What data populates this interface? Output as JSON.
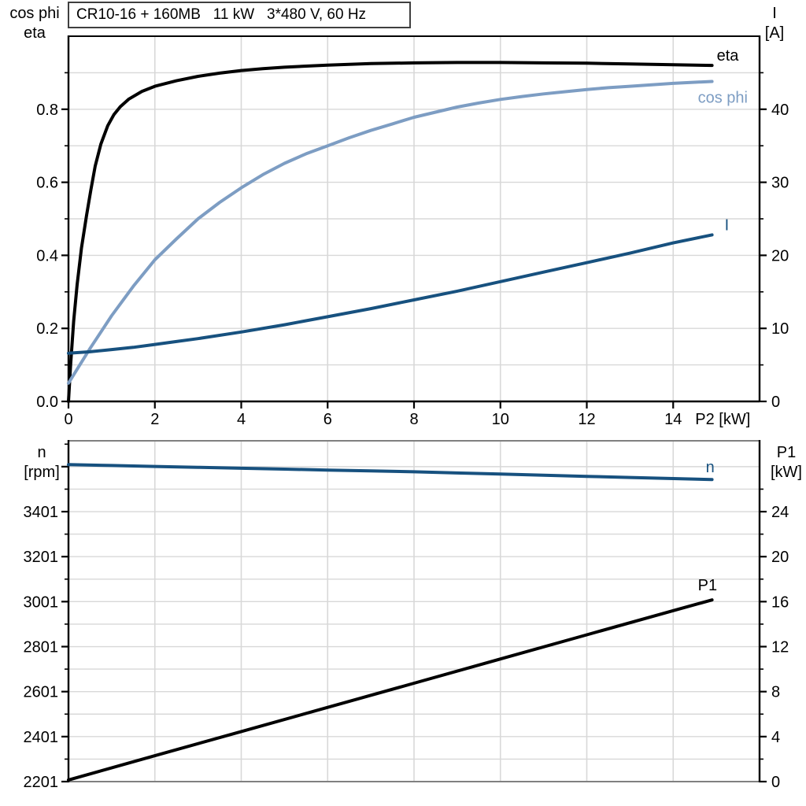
{
  "title_box": {
    "text": "CR10-16 + 160MB   11 kW   3*480 V, 60 Hz"
  },
  "colors": {
    "eta": "#000000",
    "cos_phi": "#7d9dc3",
    "current": "#17517f",
    "speed": "#17517f",
    "p1": "#000000",
    "grid": "#d8d8d8",
    "frame_gray": "#808080",
    "axis": "#000000"
  },
  "chart_data": [
    {
      "type": "line",
      "title": "CR10-16 + 160MB   11 kW   3*480 V, 60 Hz",
      "legend_position": "curve-end-labels",
      "grid": true,
      "x_axis": {
        "label": "P2 [kW]",
        "min": 0,
        "max": 16,
        "grid_step": 2,
        "major_ticks": [
          0,
          2,
          4,
          6,
          8,
          10,
          12,
          14
        ],
        "tick_labels": [
          "0",
          "2",
          "4",
          "6",
          "8",
          "10",
          "12",
          "14"
        ]
      },
      "y_left": {
        "header": [
          "cos phi",
          "eta"
        ],
        "min": 0,
        "max": 1.0,
        "grid_step": 0.1,
        "major_ticks": [
          0,
          0.2,
          0.4,
          0.6,
          0.8
        ],
        "tick_labels": [
          "0.0",
          "0.2",
          "0.4",
          "0.6",
          "0.8"
        ],
        "minor_ticks": [
          0.1,
          0.3,
          0.5,
          0.7,
          0.9
        ]
      },
      "y_right": {
        "header": [
          "I",
          "[A]"
        ],
        "min": 0,
        "max": 50,
        "major_ticks": [
          0,
          10,
          20,
          30,
          40
        ],
        "tick_labels": [
          "0",
          "10",
          "20",
          "30",
          "40"
        ],
        "minor_ticks": [
          5,
          15,
          25,
          35,
          45
        ]
      },
      "series": [
        {
          "name": "eta",
          "color": "#000000",
          "axis": "left",
          "points": [
            [
              0,
              0
            ],
            [
              0.05,
              0.1
            ],
            [
              0.12,
              0.22
            ],
            [
              0.2,
              0.32
            ],
            [
              0.3,
              0.42
            ],
            [
              0.42,
              0.51
            ],
            [
              0.52,
              0.58
            ],
            [
              0.62,
              0.645
            ],
            [
              0.75,
              0.705
            ],
            [
              0.91,
              0.755
            ],
            [
              1.05,
              0.785
            ],
            [
              1.2,
              0.807
            ],
            [
              1.4,
              0.828
            ],
            [
              1.7,
              0.849
            ],
            [
              2.0,
              0.863
            ],
            [
              2.5,
              0.878
            ],
            [
              3.0,
              0.89
            ],
            [
              3.5,
              0.899
            ],
            [
              4.0,
              0.906
            ],
            [
              4.5,
              0.911
            ],
            [
              5.0,
              0.915
            ],
            [
              5.5,
              0.918
            ],
            [
              6.0,
              0.921
            ],
            [
              7.0,
              0.925
            ],
            [
              8.0,
              0.927
            ],
            [
              9.0,
              0.928
            ],
            [
              10.0,
              0.928
            ],
            [
              11.0,
              0.927
            ],
            [
              12.0,
              0.926
            ],
            [
              13.0,
              0.924
            ],
            [
              14.0,
              0.922
            ],
            [
              14.9,
              0.92
            ]
          ]
        },
        {
          "name": "cos phi",
          "color": "#7d9dc3",
          "axis": "left",
          "points": [
            [
              0,
              0.05
            ],
            [
              0.5,
              0.145
            ],
            [
              1.0,
              0.235
            ],
            [
              1.5,
              0.315
            ],
            [
              2.0,
              0.388
            ],
            [
              2.5,
              0.445
            ],
            [
              3.0,
              0.5
            ],
            [
              3.5,
              0.545
            ],
            [
              4.0,
              0.585
            ],
            [
              4.5,
              0.621
            ],
            [
              5.0,
              0.652
            ],
            [
              5.5,
              0.678
            ],
            [
              6.0,
              0.7
            ],
            [
              6.5,
              0.722
            ],
            [
              7.0,
              0.742
            ],
            [
              7.5,
              0.76
            ],
            [
              8.0,
              0.778
            ],
            [
              8.5,
              0.792
            ],
            [
              9.0,
              0.806
            ],
            [
              9.5,
              0.817
            ],
            [
              10.0,
              0.827
            ],
            [
              10.5,
              0.835
            ],
            [
              11.0,
              0.842
            ],
            [
              11.5,
              0.848
            ],
            [
              12.0,
              0.854
            ],
            [
              12.5,
              0.859
            ],
            [
              13.0,
              0.863
            ],
            [
              13.5,
              0.867
            ],
            [
              14.0,
              0.871
            ],
            [
              14.5,
              0.874
            ],
            [
              14.9,
              0.876
            ]
          ]
        },
        {
          "name": "I",
          "color": "#17517f",
          "axis": "right",
          "points": [
            [
              0,
              6.6
            ],
            [
              0.5,
              6.8
            ],
            [
              1.0,
              7.1
            ],
            [
              1.5,
              7.4
            ],
            [
              2.0,
              7.8
            ],
            [
              2.5,
              8.2
            ],
            [
              3.0,
              8.6
            ],
            [
              4.0,
              9.5
            ],
            [
              5.0,
              10.5
            ],
            [
              6.0,
              11.6
            ],
            [
              7.0,
              12.7
            ],
            [
              8.0,
              13.9
            ],
            [
              9.0,
              15.1
            ],
            [
              10.0,
              16.4
            ],
            [
              11.0,
              17.7
            ],
            [
              12.0,
              19.0
            ],
            [
              13.0,
              20.3
            ],
            [
              14.0,
              21.7
            ],
            [
              14.9,
              22.8
            ]
          ]
        }
      ]
    },
    {
      "type": "line",
      "title": "",
      "legend_position": "curve-end-labels",
      "grid": true,
      "x_axis": {
        "label": "",
        "min": 0,
        "max": 16,
        "grid_step": 2,
        "major_ticks": [],
        "tick_labels": []
      },
      "y_left": {
        "header": [
          "n",
          "[rpm]"
        ],
        "min": 2201,
        "max": 3716,
        "grid_step": 100,
        "major_ticks": [
          2201,
          2401,
          2601,
          2801,
          3001,
          3201,
          3401,
          3601
        ],
        "tick_labels": [
          "2201",
          "2401",
          "2601",
          "2801",
          "3001",
          "3201",
          "3401",
          ""
        ],
        "minor_ticks": [
          2301,
          2501,
          2701,
          2901,
          3101,
          3301,
          3501,
          3701
        ]
      },
      "y_right": {
        "header": [
          "P1",
          "[kW]"
        ],
        "min": 0,
        "max": 30.3,
        "major_ticks": [
          0,
          4,
          8,
          12,
          16,
          20,
          24
        ],
        "tick_labels": [
          "0",
          "4",
          "8",
          "12",
          "16",
          "20",
          "24"
        ],
        "minor_ticks": [
          2,
          6,
          10,
          14,
          18,
          22,
          26
        ]
      },
      "series": [
        {
          "name": "n",
          "color": "#17517f",
          "axis": "left",
          "points": [
            [
              0,
              3610
            ],
            [
              1,
              3606
            ],
            [
              2,
              3602
            ],
            [
              3,
              3598
            ],
            [
              4,
              3594
            ],
            [
              5,
              3590
            ],
            [
              6,
              3586
            ],
            [
              7,
              3582
            ],
            [
              8,
              3578
            ],
            [
              9,
              3573
            ],
            [
              10,
              3568
            ],
            [
              11,
              3563
            ],
            [
              12,
              3558
            ],
            [
              13,
              3553
            ],
            [
              14,
              3548
            ],
            [
              14.9,
              3544
            ]
          ]
        },
        {
          "name": "P1",
          "color": "#000000",
          "axis": "right",
          "points": [
            [
              0,
              0.15
            ],
            [
              2,
              2.3
            ],
            [
              4,
              4.45
            ],
            [
              6,
              6.6
            ],
            [
              8,
              8.75
            ],
            [
              10,
              10.9
            ],
            [
              12,
              13.05
            ],
            [
              14,
              15.2
            ],
            [
              14.9,
              16.15
            ]
          ]
        }
      ]
    }
  ]
}
